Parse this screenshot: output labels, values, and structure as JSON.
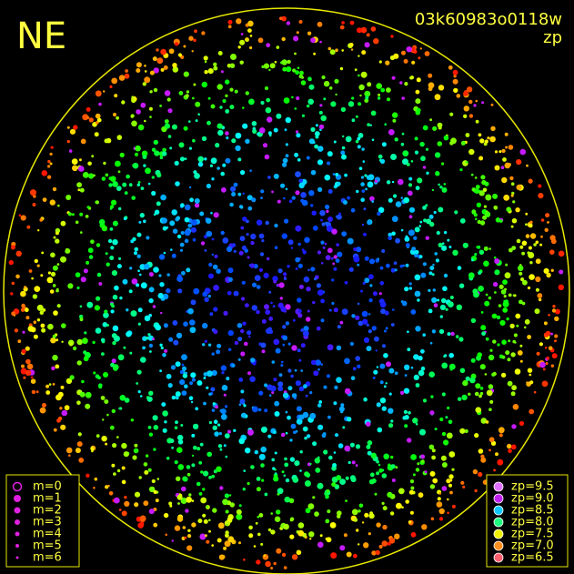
{
  "corner_label": "NE",
  "frame_id": "03k60983o0118w",
  "color_key": "zp",
  "magnitude_legend": [
    "m=0",
    "m=1",
    "m=2",
    "m=3",
    "m=4",
    "m=5",
    "m=6"
  ],
  "zp_legend": [
    {
      "label": "zp=9.5",
      "color": "#e070ff"
    },
    {
      "label": "zp=9.0",
      "color": "#c020f0"
    },
    {
      "label": "zp=8.5",
      "color": "#10c8ff"
    },
    {
      "label": "zp=8.0",
      "color": "#20ff80"
    },
    {
      "label": "zp=7.5",
      "color": "#f0f000"
    },
    {
      "label": "zp=7.0",
      "color": "#ff9020"
    },
    {
      "label": "zp=6.5",
      "color": "#ff6070"
    }
  ]
}
